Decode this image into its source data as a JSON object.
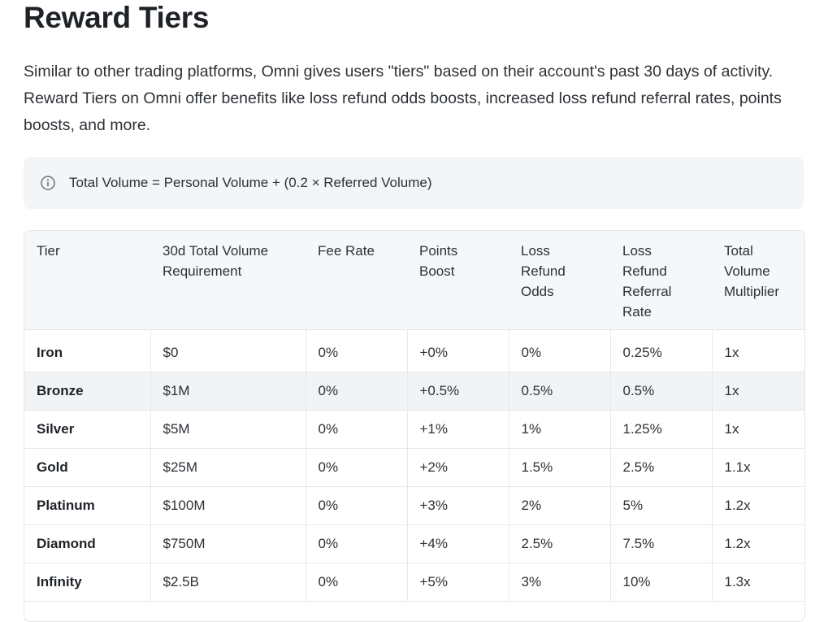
{
  "title": "Reward Tiers",
  "intro": "Similar to other trading platforms, Omni gives users \"tiers\" based on their account's past 30 days of activity. Reward Tiers on Omni offer benefits like loss refund odds boosts, increased loss refund referral rates, points boosts, and more.",
  "note": {
    "icon": "info-icon",
    "text": "Total Volume = Personal Volume + (0.2 × Referred Volume)"
  },
  "table": {
    "headers": [
      "Tier",
      "30d Total Volume Requirement",
      "Fee Rate",
      "Points Boost",
      "Loss Refund Odds",
      "Loss Refund Referral Rate",
      "Total Volume Multiplier"
    ],
    "rows": [
      [
        "Iron",
        "$0",
        "0%",
        "+0%",
        "0%",
        "0.25%",
        "1x"
      ],
      [
        "Bronze",
        "$1M",
        "0%",
        "+0.5%",
        "0.5%",
        "0.5%",
        "1x"
      ],
      [
        "Silver",
        "$5M",
        "0%",
        "+1%",
        "1%",
        "1.25%",
        "1x"
      ],
      [
        "Gold",
        "$25M",
        "0%",
        "+2%",
        "1.5%",
        "2.5%",
        "1.1x"
      ],
      [
        "Platinum",
        "$100M",
        "0%",
        "+3%",
        "2%",
        "5%",
        "1.2x"
      ],
      [
        "Diamond",
        "$750M",
        "0%",
        "+4%",
        "2.5%",
        "7.5%",
        "1.2x"
      ],
      [
        "Infinity",
        "$2.5B",
        "0%",
        "+5%",
        "3%",
        "10%",
        "1.3x"
      ]
    ]
  }
}
